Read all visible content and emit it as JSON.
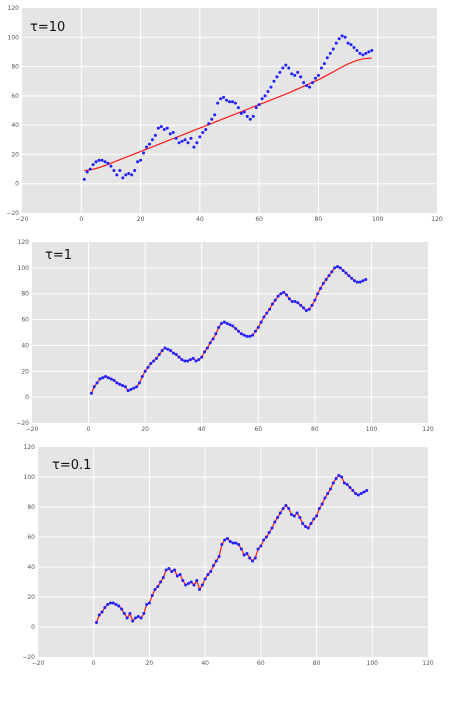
{
  "colors": {
    "plot_background": "#e5e5e5",
    "grid": "#ffffff",
    "points": "#1f1fff",
    "fit_line": "#ff1a1a"
  },
  "chart_data": [
    {
      "type": "scatter",
      "title": "",
      "annotation": "τ=10",
      "xlabel": "",
      "ylabel": "",
      "xlim": [
        -20,
        120
      ],
      "ylim": [
        -20,
        120
      ],
      "xticks": [
        "−20",
        "0",
        "20",
        "40",
        "60",
        "80",
        "100",
        "120"
      ],
      "yticks": [
        "−20",
        "0",
        "20",
        "40",
        "60",
        "80",
        "100",
        "120"
      ],
      "grid": true,
      "x_start": 1,
      "x_step": 1,
      "points_y": [
        3,
        8,
        10,
        13,
        15,
        16,
        16,
        15,
        14,
        12,
        9,
        6,
        9,
        4,
        6,
        7,
        6,
        9,
        15,
        16,
        21,
        25,
        27,
        30,
        33,
        38,
        39,
        37,
        38,
        34,
        35,
        31,
        28,
        29,
        30,
        28,
        31,
        25,
        28,
        32,
        35,
        37,
        41,
        44,
        47,
        55,
        58,
        59,
        57,
        56,
        56,
        55,
        52,
        48,
        49,
        46,
        44,
        46,
        52,
        54,
        58,
        60,
        63,
        66,
        70,
        73,
        76,
        79,
        81,
        79,
        75,
        74,
        76,
        73,
        69,
        67,
        66,
        69,
        72,
        74,
        79,
        82,
        86,
        89,
        92,
        96,
        99,
        101,
        100,
        96,
        95,
        93,
        91,
        89,
        88,
        89,
        90,
        91
      ],
      "fit_y": [
        9,
        9.2,
        9.5,
        9.9,
        10.4,
        11,
        11.7,
        12.4,
        13.2,
        14,
        14.8,
        15.6,
        16.4,
        17.2,
        18,
        18.8,
        19.6,
        20.4,
        21.2,
        22,
        22.8,
        23.6,
        24.4,
        25.2,
        26,
        26.8,
        27.6,
        28.4,
        29.2,
        30,
        30.8,
        31.6,
        32.4,
        33.2,
        34,
        34.8,
        35.6,
        36.4,
        37.2,
        38,
        38.8,
        39.6,
        40.4,
        41.2,
        42,
        42.8,
        43.6,
        44.4,
        45.2,
        46,
        46.8,
        47.6,
        48.4,
        49.2,
        50,
        50.8,
        51.6,
        52.4,
        53.2,
        54,
        54.8,
        55.6,
        56.4,
        57.2,
        58,
        58.8,
        59.6,
        60.4,
        61.2,
        62,
        62.9,
        63.8,
        64.7,
        65.6,
        66.5,
        67.4,
        68.3,
        69.2,
        70.1,
        71,
        72,
        73.1,
        74.2,
        75.3,
        76.4,
        77.5,
        78.6,
        79.7,
        80.8,
        81.8,
        82.7,
        83.5,
        84.2,
        84.8,
        85.2,
        85.5,
        85.7,
        85.8
      ]
    },
    {
      "type": "scatter",
      "title": "",
      "annotation": "τ=1",
      "xlabel": "",
      "ylabel": "",
      "xlim": [
        -20,
        120
      ],
      "ylim": [
        -20,
        120
      ],
      "xticks": [
        "−20",
        "0",
        "20",
        "40",
        "60",
        "80",
        "100",
        "120"
      ],
      "yticks": [
        "−20",
        "0",
        "20",
        "40",
        "60",
        "80",
        "100",
        "120"
      ],
      "grid": true,
      "x_start": 1,
      "x_step": 1,
      "points_y": [
        3,
        8,
        11,
        14,
        15,
        16,
        15,
        14,
        13,
        11,
        10,
        9,
        8,
        5,
        6,
        7,
        8,
        11,
        16,
        20,
        23,
        26,
        28,
        30,
        33,
        36,
        38,
        37,
        36,
        34,
        33,
        31,
        29,
        28,
        28,
        29,
        30,
        28,
        29,
        31,
        35,
        38,
        42,
        45,
        49,
        54,
        57,
        58,
        57,
        56,
        55,
        53,
        51,
        49,
        48,
        47,
        47,
        48,
        51,
        54,
        58,
        62,
        65,
        68,
        72,
        75,
        78,
        80,
        81,
        79,
        76,
        74,
        74,
        73,
        71,
        69,
        67,
        68,
        71,
        75,
        80,
        84,
        88,
        91,
        94,
        97,
        100,
        101,
        100,
        98,
        96,
        94,
        92,
        90,
        89,
        89,
        90,
        91
      ],
      "fit_y": [
        3,
        8,
        11,
        14,
        15,
        16,
        15,
        14,
        13,
        11,
        10,
        9,
        8,
        5,
        6,
        7,
        8,
        11,
        16,
        20,
        23,
        26,
        28,
        30,
        33,
        36,
        38,
        37,
        36,
        34,
        33,
        31,
        29,
        28,
        28,
        29,
        30,
        28,
        29,
        31,
        35,
        38,
        42,
        45,
        49,
        54,
        57,
        58,
        57,
        56,
        55,
        53,
        51,
        49,
        48,
        47,
        47,
        48,
        51,
        54,
        58,
        62,
        65,
        68,
        72,
        75,
        78,
        80,
        81,
        79,
        76,
        74,
        74,
        73,
        71,
        69,
        67,
        68,
        71,
        75,
        80,
        84,
        88,
        91,
        94,
        97,
        100,
        101,
        100,
        98,
        96,
        94,
        92,
        90,
        89,
        89,
        90,
        91
      ]
    },
    {
      "type": "scatter",
      "title": "",
      "annotation": "τ=0.1",
      "xlabel": "",
      "ylabel": "",
      "xlim": [
        -20,
        120
      ],
      "ylim": [
        -20,
        120
      ],
      "xticks": [
        "−20",
        "0",
        "20",
        "40",
        "60",
        "80",
        "100",
        "120"
      ],
      "yticks": [
        "−20",
        "0",
        "20",
        "40",
        "60",
        "80",
        "100",
        "120"
      ],
      "grid": true,
      "x_start": 1,
      "x_step": 1,
      "points_y": [
        3,
        8,
        10,
        13,
        15,
        16,
        16,
        15,
        14,
        12,
        9,
        6,
        9,
        4,
        6,
        7,
        6,
        9,
        15,
        16,
        21,
        25,
        27,
        30,
        33,
        38,
        39,
        37,
        38,
        34,
        35,
        31,
        28,
        29,
        30,
        28,
        31,
        25,
        28,
        32,
        35,
        37,
        41,
        44,
        47,
        55,
        58,
        59,
        57,
        56,
        56,
        55,
        52,
        48,
        49,
        46,
        44,
        46,
        52,
        54,
        58,
        60,
        63,
        66,
        70,
        73,
        76,
        79,
        81,
        79,
        75,
        74,
        76,
        73,
        69,
        67,
        66,
        69,
        72,
        74,
        79,
        82,
        86,
        89,
        92,
        96,
        99,
        101,
        100,
        96,
        95,
        93,
        91,
        89,
        88,
        89,
        90,
        91
      ],
      "fit_y": [
        3,
        8,
        10,
        13,
        15,
        16,
        16,
        15,
        14,
        12,
        9,
        6,
        9,
        4,
        6,
        7,
        6,
        9,
        15,
        16,
        21,
        25,
        27,
        30,
        33,
        38,
        39,
        37,
        38,
        34,
        35,
        31,
        28,
        29,
        30,
        28,
        31,
        25,
        28,
        32,
        35,
        37,
        41,
        44,
        47,
        55,
        58,
        59,
        57,
        56,
        56,
        55,
        52,
        48,
        49,
        46,
        44,
        46,
        52,
        54,
        58,
        60,
        63,
        66,
        70,
        73,
        76,
        79,
        81,
        79,
        75,
        74,
        76,
        73,
        69,
        67,
        66,
        69,
        72,
        74,
        79,
        82,
        86,
        89,
        92,
        96,
        99,
        101,
        100,
        96,
        95,
        93,
        91,
        89,
        88,
        89,
        90,
        91
      ]
    }
  ]
}
